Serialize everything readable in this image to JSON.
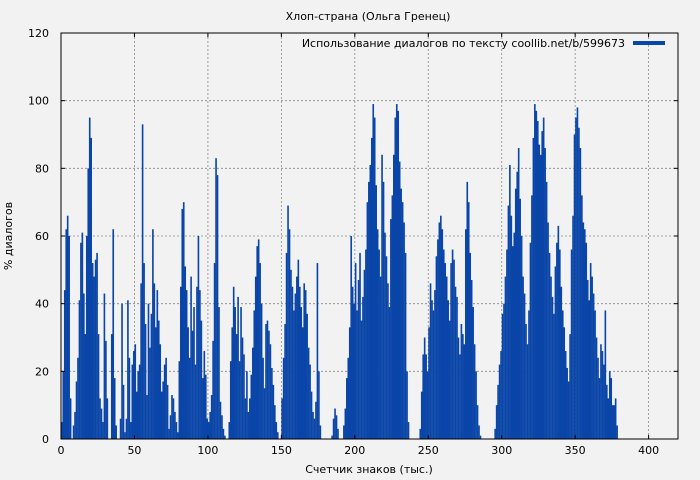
{
  "chart_data": {
    "type": "bar",
    "title": "Хлоп-страна (Ольга Гренец)",
    "xlabel": "Счетчик знаков (тыс.)",
    "ylabel": "% диалогов",
    "xlim": [
      0,
      420
    ],
    "ylim": [
      0,
      120
    ],
    "xticks": [
      0,
      50,
      100,
      150,
      200,
      250,
      300,
      350,
      400
    ],
    "yticks": [
      0,
      20,
      40,
      60,
      80,
      100,
      120
    ],
    "grid": true,
    "legend_position": "top-right",
    "series": [
      {
        "name": "Использование диалогов по тексту coollib.net/b/599673",
        "color": "#0a45a8",
        "x_start": 0,
        "x_step": 1,
        "values": [
          5,
          20,
          44,
          62,
          66,
          60,
          12,
          0,
          4,
          8,
          17,
          24,
          41,
          58,
          61,
          43,
          31,
          60,
          80,
          95,
          89,
          52,
          48,
          53,
          55,
          31,
          12,
          9,
          5,
          43,
          29,
          12,
          0,
          0,
          31,
          62,
          18,
          4,
          0,
          0,
          6,
          40,
          16,
          2,
          6,
          41,
          24,
          5,
          22,
          26,
          28,
          14,
          20,
          22,
          46,
          93,
          52,
          34,
          13,
          40,
          27,
          37,
          62,
          46,
          33,
          44,
          35,
          28,
          14,
          17,
          22,
          24,
          16,
          3,
          7,
          13,
          12,
          8,
          5,
          2,
          23,
          45,
          68,
          70,
          51,
          44,
          33,
          24,
          48,
          32,
          39,
          22,
          45,
          60,
          44,
          35,
          18,
          26,
          19,
          6,
          5,
          8,
          13,
          29,
          52,
          83,
          78,
          39,
          11,
          7,
          3,
          1,
          0,
          0,
          5,
          23,
          33,
          45,
          39,
          31,
          42,
          23,
          39,
          30,
          25,
          12,
          20,
          8,
          12,
          19,
          27,
          38,
          48,
          57,
          59,
          52,
          40,
          24,
          15,
          34,
          35,
          32,
          28,
          21,
          16,
          10,
          5,
          2,
          0,
          0,
          12,
          24,
          34,
          55,
          69,
          62,
          50,
          45,
          38,
          43,
          48,
          53,
          45,
          39,
          33,
          46,
          44,
          37,
          27,
          22,
          14,
          8,
          6,
          11,
          52,
          20,
          4,
          0,
          0,
          0,
          0,
          0,
          0,
          0,
          1,
          6,
          9,
          7,
          3,
          0,
          0,
          0,
          4,
          9,
          18,
          24,
          33,
          60,
          45,
          40,
          52,
          38,
          47,
          55,
          35,
          42,
          50,
          56,
          70,
          76,
          81,
          89,
          99,
          95,
          75,
          62,
          56,
          48,
          84,
          76,
          61,
          54,
          46,
          39,
          65,
          72,
          84,
          95,
          99,
          97,
          82,
          74,
          70,
          64,
          55,
          20,
          5,
          0,
          0,
          0,
          0,
          0,
          0,
          0,
          3,
          14,
          25,
          30,
          25,
          20,
          33,
          46,
          41,
          38,
          44,
          54,
          59,
          64,
          66,
          62,
          56,
          52,
          48,
          41,
          35,
          52,
          56,
          53,
          45,
          42,
          30,
          25,
          34,
          31,
          28,
          62,
          76,
          70,
          55,
          47,
          39,
          28,
          20,
          10,
          4,
          1,
          0,
          0,
          0,
          0,
          0,
          0,
          0,
          0,
          0,
          3,
          10,
          16,
          22,
          26,
          37,
          40,
          48,
          56,
          69,
          81,
          66,
          57,
          61,
          74,
          79,
          86,
          71,
          60,
          48,
          43,
          34,
          28,
          38,
          58,
          72,
          89,
          99,
          97,
          94,
          87,
          84,
          91,
          95,
          86,
          76,
          64,
          55,
          48,
          42,
          37,
          51,
          58,
          63,
          56,
          45,
          38,
          33,
          26,
          21,
          17,
          31,
          56,
          66,
          90,
          95,
          98,
          92,
          86,
          72,
          64,
          62,
          58,
          47,
          41,
          52,
          48,
          43,
          38,
          30,
          24,
          18,
          28,
          26,
          22,
          38,
          16,
          12,
          20,
          18,
          10,
          10,
          12,
          4,
          0
        ]
      }
    ]
  }
}
